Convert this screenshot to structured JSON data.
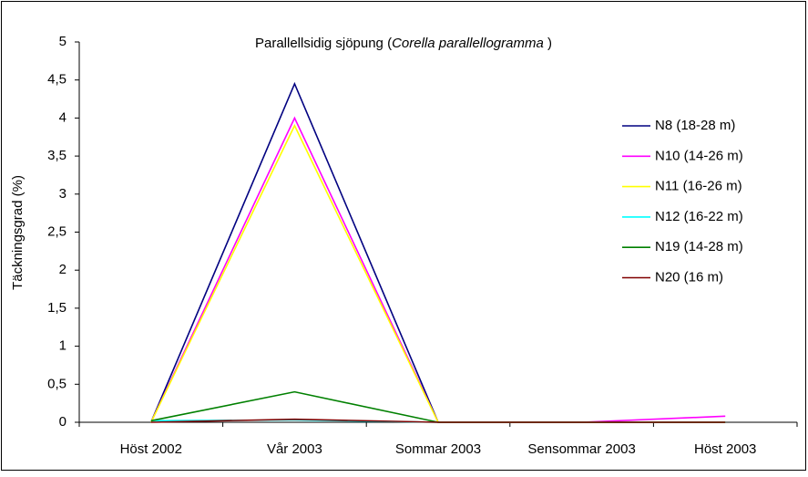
{
  "chart_data": {
    "type": "line",
    "title": [
      "Parallellsidig sjöpung (",
      "Corella parallellogramma",
      " )"
    ],
    "y_label": "Täckningsgrad (%)",
    "categories": [
      "Höst 2002",
      "Vår 2003",
      "Sommar 2003",
      "Sensommar 2003",
      "Höst 2003"
    ],
    "series": [
      {
        "name": "N8 (18-28 m)",
        "color": "#000080",
        "values": [
          0,
          4.45,
          0,
          0,
          0
        ]
      },
      {
        "name": "N10 (14-26 m)",
        "color": "#ff00ff",
        "values": [
          0,
          4.0,
          0,
          0,
          0.08
        ]
      },
      {
        "name": "N11 (16-26 m)",
        "color": "#ffff00",
        "values": [
          0,
          3.9,
          0,
          0,
          0
        ]
      },
      {
        "name": "N12 (16-22 m)",
        "color": "#00ffff",
        "values": [
          0.02,
          0.03,
          0,
          0,
          0
        ]
      },
      {
        "name": "N19 (14-28 m)",
        "color": "#008000",
        "values": [
          0.02,
          0.4,
          0,
          0,
          0
        ]
      },
      {
        "name": "N20 (16 m)",
        "color": "#800000",
        "values": [
          0,
          0.04,
          0,
          0,
          0
        ]
      }
    ],
    "ylim": [
      0,
      5
    ],
    "yticks": [
      0,
      {
        "value": 0.5,
        "label": "0,5"
      },
      1,
      {
        "value": 1.5,
        "label": "1,5"
      },
      2,
      {
        "value": 2.5,
        "label": "2,5"
      },
      3,
      {
        "value": 3.5,
        "label": "3,5"
      },
      4,
      {
        "value": 4.5,
        "label": "4,5"
      },
      5
    ],
    "grid": false,
    "legend": "right"
  }
}
